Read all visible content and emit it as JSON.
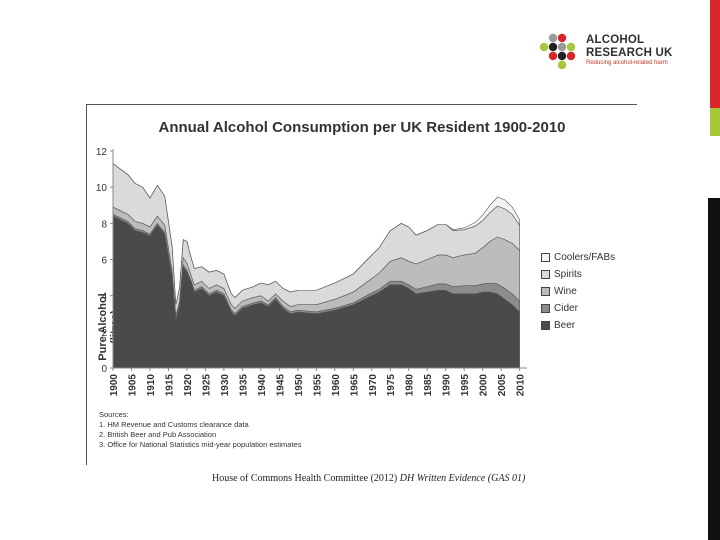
{
  "brand": {
    "name_line1": "ALCOHOL",
    "name_line2": "RESEARCH UK",
    "tagline": "Reducing alcohol-related harm",
    "colors": {
      "red": "#d9262b",
      "green": "#a8c63a",
      "grey": "#9a9a9a",
      "dark": "#222222"
    }
  },
  "chart_data": {
    "type": "area",
    "title": "Annual Alcohol Consumption per UK Resident 1900-2010",
    "ylabel": "Pure Alcohol (litres)",
    "xlabel": "",
    "ylim": [
      0,
      12
    ],
    "xlim": [
      1900,
      2012
    ],
    "yticks": [
      "0",
      "2",
      "4",
      "6",
      "8",
      "10",
      "12"
    ],
    "xticks": [
      "1900",
      "1905",
      "1910",
      "1915",
      "1920",
      "1925",
      "1930",
      "1935",
      "1940",
      "1945",
      "1950",
      "1955",
      "1960",
      "1965",
      "1970",
      "1975",
      "1980",
      "1985",
      "1990",
      "1995",
      "2000",
      "2005",
      "2010"
    ],
    "stacked": true,
    "x": [
      1900,
      1902,
      1904,
      1906,
      1908,
      1910,
      1912,
      1914,
      1916,
      1917,
      1918,
      1919,
      1920,
      1921,
      1922,
      1924,
      1926,
      1928,
      1930,
      1932,
      1933,
      1935,
      1938,
      1940,
      1942,
      1944,
      1946,
      1948,
      1950,
      1955,
      1960,
      1965,
      1970,
      1972,
      1975,
      1978,
      1980,
      1982,
      1985,
      1988,
      1990,
      1992,
      1995,
      1998,
      2000,
      2002,
      2004,
      2006,
      2008,
      2010
    ],
    "series": [
      {
        "name": "Beer",
        "color": "#4a4a4a",
        "values": [
          8.4,
          8.2,
          8.0,
          7.6,
          7.5,
          7.3,
          7.9,
          7.4,
          5.0,
          2.6,
          3.4,
          5.6,
          5.3,
          4.8,
          4.2,
          4.4,
          4.0,
          4.2,
          4.0,
          3.1,
          2.9,
          3.3,
          3.5,
          3.6,
          3.4,
          3.8,
          3.3,
          3.0,
          3.1,
          3.0,
          3.2,
          3.5,
          4.0,
          4.2,
          4.6,
          4.6,
          4.4,
          4.1,
          4.2,
          4.3,
          4.3,
          4.1,
          4.1,
          4.1,
          4.2,
          4.2,
          4.1,
          3.8,
          3.5,
          3.1
        ]
      },
      {
        "name": "Cider",
        "color": "#8c8c8c",
        "values": [
          0.1,
          0.1,
          0.1,
          0.1,
          0.1,
          0.1,
          0.1,
          0.1,
          0.1,
          0.1,
          0.1,
          0.1,
          0.1,
          0.1,
          0.1,
          0.1,
          0.1,
          0.1,
          0.1,
          0.1,
          0.1,
          0.1,
          0.1,
          0.1,
          0.1,
          0.1,
          0.1,
          0.1,
          0.1,
          0.1,
          0.1,
          0.1,
          0.15,
          0.15,
          0.2,
          0.2,
          0.2,
          0.25,
          0.3,
          0.35,
          0.35,
          0.4,
          0.45,
          0.45,
          0.45,
          0.5,
          0.55,
          0.6,
          0.6,
          0.6
        ]
      },
      {
        "name": "Wine",
        "color": "#bcbcbc",
        "values": [
          0.4,
          0.4,
          0.4,
          0.4,
          0.4,
          0.4,
          0.4,
          0.4,
          0.3,
          0.2,
          0.2,
          0.4,
          0.4,
          0.3,
          0.3,
          0.3,
          0.3,
          0.3,
          0.3,
          0.3,
          0.3,
          0.3,
          0.3,
          0.3,
          0.2,
          0.2,
          0.3,
          0.3,
          0.3,
          0.4,
          0.5,
          0.6,
          0.8,
          0.9,
          1.1,
          1.3,
          1.3,
          1.4,
          1.5,
          1.6,
          1.6,
          1.6,
          1.7,
          1.8,
          2.0,
          2.3,
          2.6,
          2.7,
          2.8,
          2.8
        ]
      },
      {
        "name": "Spirits",
        "color": "#dadada",
        "values": [
          2.4,
          2.3,
          2.2,
          2.1,
          2.0,
          1.6,
          1.7,
          1.6,
          1.3,
          0.6,
          0.7,
          1.0,
          1.2,
          1.0,
          0.9,
          0.8,
          0.9,
          0.8,
          0.8,
          0.6,
          0.6,
          0.6,
          0.6,
          0.7,
          0.9,
          0.7,
          0.7,
          0.8,
          0.8,
          0.8,
          0.9,
          1.0,
          1.3,
          1.4,
          1.7,
          1.9,
          1.9,
          1.6,
          1.6,
          1.7,
          1.7,
          1.5,
          1.4,
          1.5,
          1.5,
          1.6,
          1.7,
          1.7,
          1.6,
          1.4
        ]
      },
      {
        "name": "Coolers/FABs",
        "color": "#f3f3f3",
        "values": [
          0,
          0,
          0,
          0,
          0,
          0,
          0,
          0,
          0,
          0,
          0,
          0,
          0,
          0,
          0,
          0,
          0,
          0,
          0,
          0,
          0,
          0,
          0,
          0,
          0,
          0,
          0,
          0,
          0,
          0,
          0,
          0,
          0,
          0,
          0,
          0,
          0,
          0,
          0,
          0,
          0,
          0.05,
          0.1,
          0.2,
          0.3,
          0.4,
          0.5,
          0.5,
          0.4,
          0.3
        ]
      }
    ],
    "legend": [
      "Coolers/FABs",
      "Spirits",
      "Wine",
      "Cider",
      "Beer"
    ],
    "legend_position": "right"
  },
  "sources": {
    "heading": "Sources:",
    "lines": [
      "1. HM Revenue and Customs clearance data",
      "2. British Beer and Pub Association",
      "3. Office for National Statistics mid-year population estimates"
    ]
  },
  "caption": {
    "text": "House of Commons Health Committee (2012)",
    "italic": "DH Written Evidence (GAS 01)"
  }
}
